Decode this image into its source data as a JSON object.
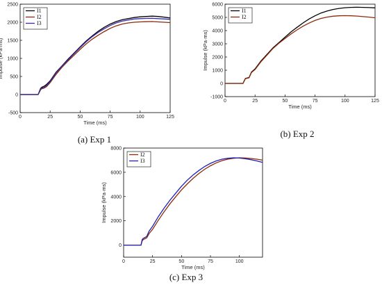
{
  "chart_data": [
    {
      "type": "line",
      "caption": "(a)  Exp 1",
      "xlabel": "Time (ms)",
      "ylabel": "Impulse (kPa·ms)",
      "xlim": [
        0,
        125
      ],
      "ylim": [
        -500,
        2500
      ],
      "xticks": [
        0,
        25,
        50,
        75,
        100,
        125
      ],
      "yticks": [
        -500,
        0,
        500,
        1000,
        1500,
        2000,
        2500
      ],
      "legend_position": "top-left",
      "series": [
        {
          "name": "I1",
          "color": "#000000",
          "x": [
            0,
            15,
            16,
            17,
            18,
            20,
            22,
            25,
            30,
            35,
            40,
            45,
            50,
            55,
            60,
            65,
            70,
            75,
            80,
            85,
            90,
            95,
            100,
            105,
            110,
            115,
            120,
            125
          ],
          "y": [
            0,
            0,
            80,
            170,
            200,
            230,
            280,
            380,
            620,
            800,
            980,
            1150,
            1320,
            1480,
            1620,
            1750,
            1860,
            1950,
            2020,
            2070,
            2100,
            2130,
            2150,
            2160,
            2170,
            2160,
            2140,
            2120
          ]
        },
        {
          "name": "I2",
          "color": "#8b2a0a",
          "x": [
            0,
            15,
            16,
            17,
            18,
            20,
            22,
            25,
            30,
            35,
            40,
            45,
            50,
            55,
            60,
            65,
            70,
            75,
            80,
            85,
            90,
            95,
            100,
            105,
            110,
            115,
            120,
            125
          ],
          "y": [
            0,
            0,
            60,
            130,
            160,
            180,
            220,
            330,
            560,
            760,
            930,
            1090,
            1250,
            1400,
            1530,
            1640,
            1740,
            1830,
            1900,
            1950,
            1980,
            2000,
            2010,
            2015,
            2020,
            2010,
            2000,
            1990
          ]
        },
        {
          "name": "I3",
          "color": "#3a2aa8",
          "x": [
            0,
            15,
            16,
            17,
            18,
            20,
            22,
            25,
            30,
            35,
            40,
            45,
            50,
            55,
            60,
            65,
            70,
            75,
            80,
            85,
            90,
            95,
            100,
            105,
            110,
            115,
            120,
            125
          ],
          "y": [
            0,
            0,
            70,
            150,
            180,
            200,
            250,
            360,
            600,
            790,
            960,
            1130,
            1300,
            1460,
            1600,
            1720,
            1820,
            1910,
            1980,
            2030,
            2060,
            2090,
            2100,
            2105,
            2110,
            2100,
            2090,
            2080
          ]
        }
      ]
    },
    {
      "type": "line",
      "caption": "(b)  Exp 2",
      "xlabel": "Time (ms)",
      "ylabel": "Impulse (kPa·ms)",
      "xlim": [
        0,
        125
      ],
      "ylim": [
        -1000,
        6000
      ],
      "xticks": [
        0,
        25,
        50,
        75,
        100,
        125
      ],
      "yticks": [
        -1000,
        0,
        1000,
        2000,
        3000,
        4000,
        5000,
        6000
      ],
      "legend_position": "top-left",
      "series": [
        {
          "name": "I1",
          "color": "#000000",
          "x": [
            0,
            15,
            16,
            17,
            18,
            20,
            22,
            25,
            30,
            35,
            40,
            45,
            50,
            55,
            60,
            65,
            70,
            75,
            80,
            85,
            90,
            95,
            100,
            105,
            110,
            115,
            120,
            125
          ],
          "y": [
            0,
            0,
            200,
            380,
            400,
            450,
            850,
            1100,
            1700,
            2200,
            2700,
            3100,
            3500,
            3900,
            4250,
            4580,
            4880,
            5120,
            5330,
            5480,
            5600,
            5680,
            5730,
            5760,
            5770,
            5760,
            5740,
            5720
          ]
        },
        {
          "name": "I2",
          "color": "#8b2a0a",
          "x": [
            0,
            15,
            16,
            17,
            18,
            20,
            22,
            25,
            30,
            35,
            40,
            45,
            50,
            55,
            60,
            65,
            70,
            75,
            80,
            85,
            90,
            95,
            100,
            105,
            110,
            115,
            120,
            125
          ],
          "y": [
            0,
            0,
            180,
            360,
            380,
            420,
            820,
            1050,
            1650,
            2150,
            2650,
            3050,
            3400,
            3750,
            4050,
            4330,
            4570,
            4770,
            4920,
            5020,
            5090,
            5120,
            5130,
            5120,
            5100,
            5060,
            5020,
            4970
          ]
        }
      ]
    },
    {
      "type": "line",
      "caption": "(c)  Exp 3",
      "xlabel": "Time (ms)",
      "ylabel": "Impulse (kPa·ms)",
      "xlim": [
        0,
        120
      ],
      "ylim": [
        -1000,
        8000
      ],
      "xticks": [
        0,
        25,
        50,
        75,
        100
      ],
      "yticks": [
        0,
        2000,
        4000,
        6000,
        8000
      ],
      "legend_position": "top-left",
      "series": [
        {
          "name": "I2",
          "color": "#8b2a0a",
          "x": [
            0,
            15,
            16,
            17,
            18,
            20,
            22,
            25,
            30,
            35,
            40,
            45,
            50,
            55,
            60,
            65,
            70,
            75,
            80,
            85,
            90,
            95,
            100,
            105,
            110,
            115,
            120
          ],
          "y": [
            0,
            0,
            350,
            450,
            500,
            600,
            950,
            1300,
            2050,
            2750,
            3400,
            3980,
            4550,
            5050,
            5500,
            5900,
            6250,
            6540,
            6780,
            6960,
            7080,
            7160,
            7200,
            7180,
            7140,
            7080,
            7000
          ]
        },
        {
          "name": "I3",
          "color": "#1f1fb4",
          "x": [
            0,
            15,
            16,
            17,
            18,
            20,
            22,
            25,
            30,
            35,
            40,
            45,
            50,
            55,
            60,
            65,
            70,
            75,
            80,
            85,
            90,
            95,
            100,
            105,
            110,
            115,
            120
          ],
          "y": [
            0,
            0,
            450,
            560,
            600,
            720,
            1150,
            1550,
            2350,
            3050,
            3700,
            4280,
            4850,
            5350,
            5780,
            6150,
            6480,
            6740,
            6940,
            7080,
            7160,
            7200,
            7180,
            7120,
            7040,
            6940,
            6820
          ]
        }
      ]
    }
  ]
}
